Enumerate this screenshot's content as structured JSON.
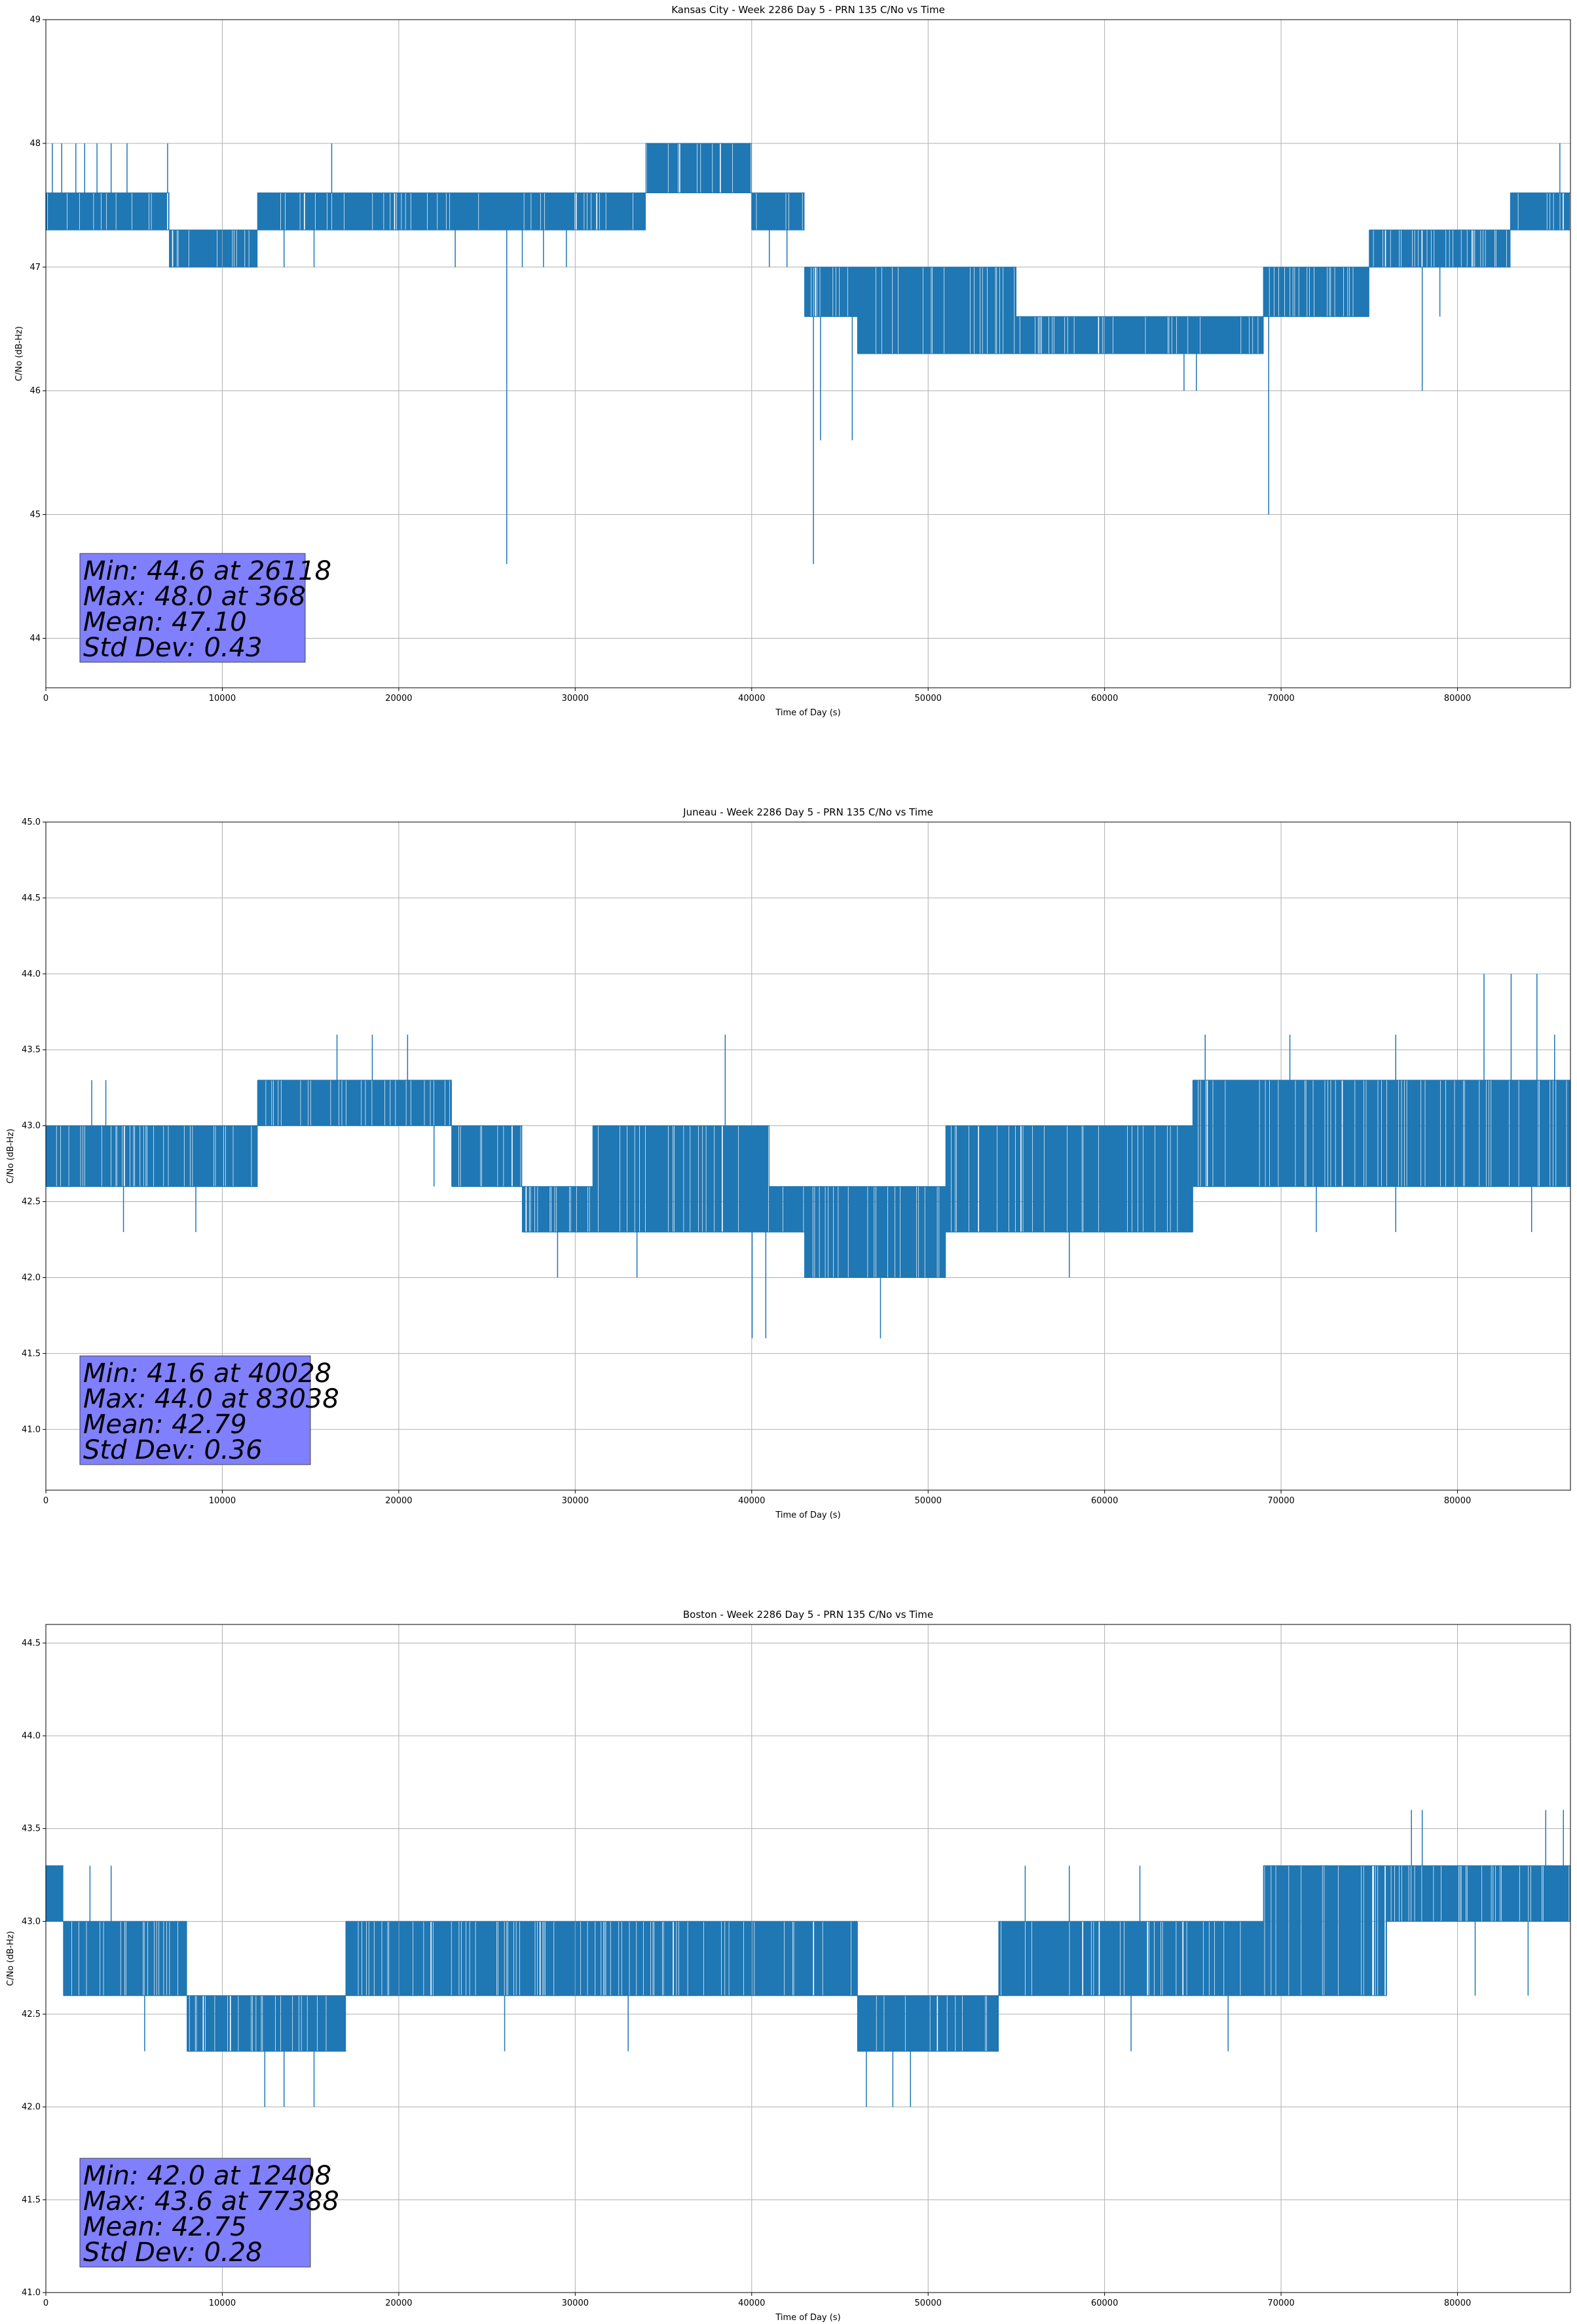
{
  "figure": {
    "background": "#ffffff",
    "line_color": "#1f77b4",
    "grid_color": "#b0b0b0",
    "stats_box_color": "#8080ff"
  },
  "chart_data": [
    {
      "type": "line",
      "title": "Kansas City - Week 2286 Day 5 - PRN 135 C/No vs Time",
      "xlabel": "Time of Day (s)",
      "ylabel": "C/No (dB-Hz)",
      "xlim": [
        0,
        86400
      ],
      "ylim": [
        43.6,
        49.0
      ],
      "xticks": [
        0,
        10000,
        20000,
        30000,
        40000,
        50000,
        60000,
        70000,
        80000
      ],
      "xtick_labels": [
        "0",
        "10000",
        "20000",
        "30000",
        "40000",
        "50000",
        "60000",
        "70000",
        "80000"
      ],
      "yticks": [
        44,
        45,
        46,
        47,
        48,
        49
      ],
      "ytick_labels": [
        "44",
        "45",
        "46",
        "47",
        "48",
        "49"
      ],
      "grid": true,
      "stats": {
        "min_line": "Min: 44.6 at 26118",
        "max_line": "Max: 48.0 at 368",
        "mean_line": "Mean: 47.10",
        "std_line": "Std Dev: 0.43"
      },
      "series": [
        {
          "values_desc": "C/No sampled every second; dense band between level pairs",
          "segments": [
            {
              "x": [
                0,
                7000
              ],
              "low": 47.3,
              "high": 47.6
            },
            {
              "x": [
                7000,
                12000
              ],
              "low": 47.0,
              "high": 47.3
            },
            {
              "x": [
                12000,
                34000
              ],
              "low": 47.3,
              "high": 47.6
            },
            {
              "x": [
                34000,
                40000
              ],
              "low": 47.6,
              "high": 48.0
            },
            {
              "x": [
                40000,
                43000
              ],
              "low": 47.3,
              "high": 47.6
            },
            {
              "x": [
                43000,
                46000
              ],
              "low": 46.6,
              "high": 47.0
            },
            {
              "x": [
                46000,
                55000
              ],
              "low": 46.3,
              "high": 47.0
            },
            {
              "x": [
                55000,
                69000
              ],
              "low": 46.3,
              "high": 46.6
            },
            {
              "x": [
                69000,
                75000
              ],
              "low": 46.6,
              "high": 47.0
            },
            {
              "x": [
                75000,
                83000
              ],
              "low": 47.0,
              "high": 47.3
            },
            {
              "x": [
                83000,
                86400
              ],
              "low": 47.3,
              "high": 47.6
            }
          ],
          "spikes_up": [
            [
              368,
              48.0
            ],
            [
              900,
              48.0
            ],
            [
              1700,
              48.0
            ],
            [
              2200,
              48.0
            ],
            [
              2900,
              48.0
            ],
            [
              3700,
              48.0
            ],
            [
              4600,
              48.0
            ],
            [
              6900,
              48.0
            ],
            [
              16200,
              48.0
            ],
            [
              85800,
              48.0
            ]
          ],
          "spikes_down": [
            [
              7600,
              47.0
            ],
            [
              13500,
              47.0
            ],
            [
              15200,
              47.0
            ],
            [
              23200,
              47.0
            ],
            [
              26118,
              44.6
            ],
            [
              27000,
              47.0
            ],
            [
              28200,
              47.0
            ],
            [
              29500,
              47.0
            ],
            [
              41000,
              47.0
            ],
            [
              42000,
              47.0
            ],
            [
              43500,
              44.6
            ],
            [
              43900,
              45.6
            ],
            [
              45700,
              45.6
            ],
            [
              46800,
              46.3
            ],
            [
              64500,
              46.0
            ],
            [
              65200,
              46.0
            ],
            [
              69300,
              45.0
            ],
            [
              78000,
              46.0
            ],
            [
              79000,
              46.6
            ]
          ]
        }
      ]
    },
    {
      "type": "line",
      "title": "Juneau - Week 2286 Day 5 - PRN 135 C/No vs Time",
      "xlabel": "Time of Day (s)",
      "ylabel": "C/No (dB-Hz)",
      "xlim": [
        0,
        86400
      ],
      "ylim": [
        40.6,
        45.0
      ],
      "xticks": [
        0,
        10000,
        20000,
        30000,
        40000,
        50000,
        60000,
        70000,
        80000
      ],
      "xtick_labels": [
        "0",
        "10000",
        "20000",
        "30000",
        "40000",
        "50000",
        "60000",
        "70000",
        "80000"
      ],
      "yticks": [
        41.0,
        41.5,
        42.0,
        42.5,
        43.0,
        43.5,
        44.0,
        44.5,
        45.0
      ],
      "ytick_labels": [
        "41.0",
        "41.5",
        "42.0",
        "42.5",
        "43.0",
        "43.5",
        "44.0",
        "44.5",
        "45.0"
      ],
      "grid": true,
      "stats": {
        "min_line": "Min: 41.6 at 40028",
        "max_line": "Max: 44.0 at 83038",
        "mean_line": "Mean: 42.79",
        "std_line": "Std Dev: 0.36"
      },
      "series": [
        {
          "values_desc": "C/No sampled every second; dense band between level pairs",
          "segments": [
            {
              "x": [
                0,
                3000
              ],
              "low": 42.6,
              "high": 43.0
            },
            {
              "x": [
                3000,
                12000
              ],
              "low": 42.6,
              "high": 43.0
            },
            {
              "x": [
                12000,
                23000
              ],
              "low": 43.0,
              "high": 43.3
            },
            {
              "x": [
                23000,
                27000
              ],
              "low": 42.6,
              "high": 43.0
            },
            {
              "x": [
                27000,
                31000
              ],
              "low": 42.3,
              "high": 42.6
            },
            {
              "x": [
                31000,
                41000
              ],
              "low": 42.3,
              "high": 43.0
            },
            {
              "x": [
                41000,
                43000
              ],
              "low": 42.3,
              "high": 42.6
            },
            {
              "x": [
                43000,
                51000
              ],
              "low": 42.0,
              "high": 42.6
            },
            {
              "x": [
                51000,
                65000
              ],
              "low": 42.3,
              "high": 43.0
            },
            {
              "x": [
                65000,
                86400
              ],
              "low": 42.6,
              "high": 43.3
            }
          ],
          "spikes_up": [
            [
              2600,
              43.3
            ],
            [
              3400,
              43.3
            ],
            [
              16500,
              43.6
            ],
            [
              18500,
              43.6
            ],
            [
              20500,
              43.6
            ],
            [
              38500,
              43.6
            ],
            [
              65700,
              43.6
            ],
            [
              70500,
              43.6
            ],
            [
              76500,
              43.6
            ],
            [
              81500,
              44.0
            ],
            [
              83038,
              44.0
            ],
            [
              84500,
              44.0
            ],
            [
              85500,
              43.6
            ]
          ],
          "spikes_down": [
            [
              4400,
              42.3
            ],
            [
              8500,
              42.3
            ],
            [
              22000,
              42.6
            ],
            [
              29000,
              42.0
            ],
            [
              33500,
              42.0
            ],
            [
              40028,
              41.6
            ],
            [
              40800,
              41.6
            ],
            [
              47300,
              41.6
            ],
            [
              58000,
              42.0
            ],
            [
              72000,
              42.3
            ],
            [
              76500,
              42.3
            ],
            [
              84200,
              42.3
            ]
          ]
        }
      ]
    },
    {
      "type": "line",
      "title": "Boston - Week 2286 Day 5 - PRN 135 C/No vs Time",
      "xlabel": "Time of Day (s)",
      "ylabel": "C/No (dB-Hz)",
      "xlim": [
        0,
        86400
      ],
      "ylim": [
        41.0,
        44.6
      ],
      "xticks": [
        0,
        10000,
        20000,
        30000,
        40000,
        50000,
        60000,
        70000,
        80000
      ],
      "xtick_labels": [
        "0",
        "10000",
        "20000",
        "30000",
        "40000",
        "50000",
        "60000",
        "70000",
        "80000"
      ],
      "yticks": [
        41.0,
        41.5,
        42.0,
        42.5,
        43.0,
        43.5,
        44.0,
        44.5
      ],
      "ytick_labels": [
        "41.0",
        "41.5",
        "42.0",
        "42.5",
        "43.0",
        "43.5",
        "44.0",
        "44.5"
      ],
      "grid": true,
      "stats": {
        "min_line": "Min: 42.0 at 12408",
        "max_line": "Max: 43.6 at 77388",
        "mean_line": "Mean: 42.75",
        "std_line": "Std Dev: 0.28"
      },
      "series": [
        {
          "values_desc": "C/No sampled every second; dense band between level pairs",
          "segments": [
            {
              "x": [
                0,
                1000
              ],
              "low": 43.0,
              "high": 43.3
            },
            {
              "x": [
                1000,
                8000
              ],
              "low": 42.6,
              "high": 43.0
            },
            {
              "x": [
                8000,
                17000
              ],
              "low": 42.3,
              "high": 42.6
            },
            {
              "x": [
                17000,
                46000
              ],
              "low": 42.6,
              "high": 43.0
            },
            {
              "x": [
                46000,
                54000
              ],
              "low": 42.3,
              "high": 42.6
            },
            {
              "x": [
                54000,
                69000
              ],
              "low": 42.6,
              "high": 43.0
            },
            {
              "x": [
                69000,
                76000
              ],
              "low": 42.6,
              "high": 43.3
            },
            {
              "x": [
                76000,
                86400
              ],
              "low": 43.0,
              "high": 43.3
            }
          ],
          "spikes_up": [
            [
              2500,
              43.3
            ],
            [
              3700,
              43.3
            ],
            [
              55500,
              43.3
            ],
            [
              58000,
              43.3
            ],
            [
              62000,
              43.3
            ],
            [
              77388,
              43.6
            ],
            [
              78000,
              43.6
            ],
            [
              85000,
              43.6
            ],
            [
              86000,
              43.6
            ]
          ],
          "spikes_down": [
            [
              5600,
              42.3
            ],
            [
              12408,
              42.0
            ],
            [
              13500,
              42.0
            ],
            [
              15200,
              42.0
            ],
            [
              26000,
              42.3
            ],
            [
              33000,
              42.3
            ],
            [
              46500,
              42.0
            ],
            [
              48000,
              42.0
            ],
            [
              49000,
              42.0
            ],
            [
              61500,
              42.3
            ],
            [
              67000,
              42.3
            ],
            [
              81000,
              42.6
            ],
            [
              84000,
              42.6
            ]
          ]
        }
      ]
    }
  ]
}
